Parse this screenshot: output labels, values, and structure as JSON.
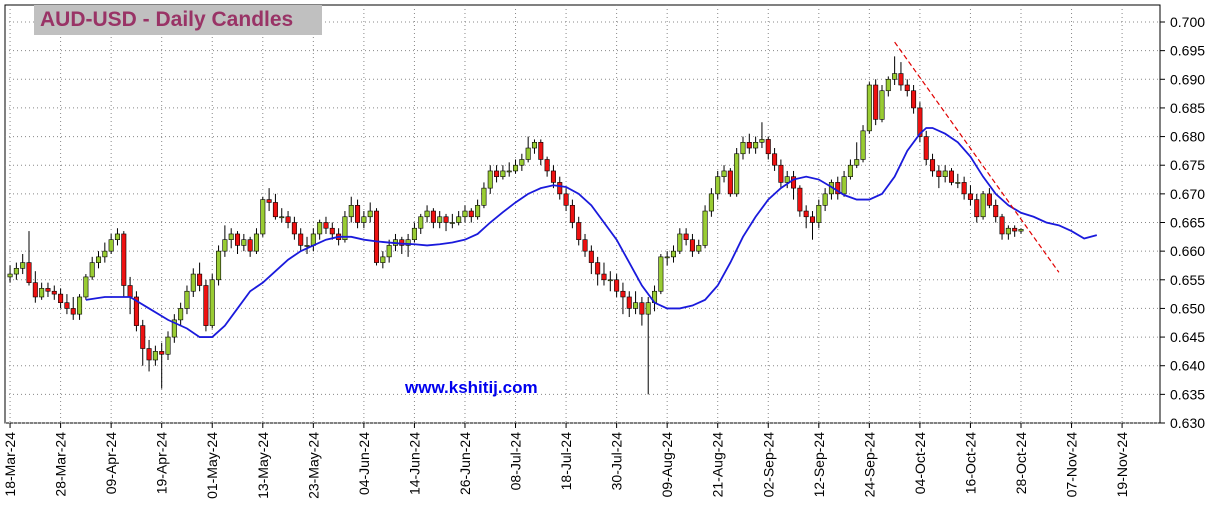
{
  "chart_data": {
    "type": "candlestick",
    "title": "AUD-USD - Daily Candles",
    "watermark": "www.kshitij.com",
    "up_color": "#99cc33",
    "down_color": "#ee1111",
    "grid": true,
    "xlim": [
      -0.8,
      182
    ],
    "xticks": [
      {
        "value": 0,
        "label": "18-Mar-24"
      },
      {
        "value": 8,
        "label": "28-Mar-24"
      },
      {
        "value": 16,
        "label": "09-Apr-24"
      },
      {
        "value": 24,
        "label": "19-Apr-24"
      },
      {
        "value": 32,
        "label": "01-May-24"
      },
      {
        "value": 40,
        "label": "13-May-24"
      },
      {
        "value": 48,
        "label": "23-May-24"
      },
      {
        "value": 56,
        "label": "04-Jun-24"
      },
      {
        "value": 64,
        "label": "14-Jun-24"
      },
      {
        "value": 72,
        "label": "26-Jun-24"
      },
      {
        "value": 80,
        "label": "08-Jul-24"
      },
      {
        "value": 88,
        "label": "18-Jul-24"
      },
      {
        "value": 96,
        "label": "30-Jul-24"
      },
      {
        "value": 104,
        "label": "09-Aug-24"
      },
      {
        "value": 112,
        "label": "21-Aug-24"
      },
      {
        "value": 120,
        "label": "02-Sep-24"
      },
      {
        "value": 128,
        "label": "12-Sep-24"
      },
      {
        "value": 136,
        "label": "24-Sep-24"
      },
      {
        "value": 144,
        "label": "04-Oct-24"
      },
      {
        "value": 152,
        "label": "16-Oct-24"
      },
      {
        "value": 160,
        "label": "28-Oct-24"
      },
      {
        "value": 168,
        "label": "07-Nov-24"
      },
      {
        "value": 176,
        "label": "19-Nov-24"
      }
    ],
    "ylim": [
      0.63,
      0.7
    ],
    "yticks": [
      {
        "value": 0.63,
        "label": "0.630"
      },
      0.635,
      {
        "value": 0.64,
        "label": "0.640"
      },
      0.645,
      {
        "value": 0.65,
        "label": "0.650"
      },
      0.655,
      {
        "value": 0.66,
        "label": "0.660"
      },
      0.665,
      {
        "value": 0.67,
        "label": "0.670"
      },
      0.675,
      {
        "value": 0.68,
        "label": "0.680"
      },
      0.685,
      {
        "value": 0.69,
        "label": "0.690"
      },
      0.695,
      {
        "value": 0.7,
        "label": "0.700"
      }
    ],
    "ohlc": [
      [
        0.6555,
        0.6575,
        0.6545,
        0.656
      ],
      [
        0.656,
        0.658,
        0.655,
        0.657
      ],
      [
        0.657,
        0.6595,
        0.656,
        0.658
      ],
      [
        0.658,
        0.6635,
        0.654,
        0.6545
      ],
      [
        0.6545,
        0.6565,
        0.651,
        0.652
      ],
      [
        0.652,
        0.6545,
        0.6515,
        0.6535
      ],
      [
        0.6535,
        0.6545,
        0.652,
        0.653
      ],
      [
        0.653,
        0.654,
        0.6515,
        0.6525
      ],
      [
        0.6525,
        0.6535,
        0.65,
        0.651
      ],
      [
        0.651,
        0.6525,
        0.649,
        0.65
      ],
      [
        0.65,
        0.652,
        0.648,
        0.649
      ],
      [
        0.649,
        0.6525,
        0.648,
        0.652
      ],
      [
        0.652,
        0.656,
        0.6515,
        0.6555
      ],
      [
        0.6555,
        0.659,
        0.655,
        0.658
      ],
      [
        0.658,
        0.66,
        0.657,
        0.659
      ],
      [
        0.659,
        0.6615,
        0.658,
        0.66
      ],
      [
        0.66,
        0.663,
        0.6595,
        0.662
      ],
      [
        0.662,
        0.664,
        0.661,
        0.663
      ],
      [
        0.663,
        0.6635,
        0.652,
        0.654
      ],
      [
        0.654,
        0.6555,
        0.649,
        0.652
      ],
      [
        0.652,
        0.653,
        0.646,
        0.647
      ],
      [
        0.647,
        0.648,
        0.64,
        0.643
      ],
      [
        0.643,
        0.6445,
        0.639,
        0.641
      ],
      [
        0.641,
        0.6435,
        0.64,
        0.6425
      ],
      [
        0.6425,
        0.644,
        0.636,
        0.642
      ],
      [
        0.642,
        0.646,
        0.641,
        0.645
      ],
      [
        0.645,
        0.649,
        0.644,
        0.648
      ],
      [
        0.648,
        0.651,
        0.647,
        0.65
      ],
      [
        0.65,
        0.654,
        0.649,
        0.653
      ],
      [
        0.653,
        0.657,
        0.652,
        0.656
      ],
      [
        0.656,
        0.658,
        0.653,
        0.654
      ],
      [
        0.654,
        0.655,
        0.646,
        0.647
      ],
      [
        0.647,
        0.656,
        0.6465,
        0.655
      ],
      [
        0.655,
        0.661,
        0.654,
        0.66
      ],
      [
        0.66,
        0.6645,
        0.659,
        0.662
      ],
      [
        0.662,
        0.664,
        0.6605,
        0.663
      ],
      [
        0.663,
        0.6635,
        0.6595,
        0.661
      ],
      [
        0.661,
        0.663,
        0.66,
        0.662
      ],
      [
        0.662,
        0.6625,
        0.659,
        0.66
      ],
      [
        0.66,
        0.664,
        0.6595,
        0.663
      ],
      [
        0.663,
        0.6695,
        0.6625,
        0.669
      ],
      [
        0.669,
        0.671,
        0.667,
        0.6685
      ],
      [
        0.6685,
        0.67,
        0.6655,
        0.666
      ],
      [
        0.666,
        0.6675,
        0.665,
        0.666
      ],
      [
        0.666,
        0.667,
        0.664,
        0.665
      ],
      [
        0.665,
        0.666,
        0.662,
        0.663
      ],
      [
        0.663,
        0.664,
        0.66,
        0.661
      ],
      [
        0.661,
        0.6625,
        0.6595,
        0.661
      ],
      [
        0.661,
        0.664,
        0.66,
        0.663
      ],
      [
        0.663,
        0.6655,
        0.662,
        0.665
      ],
      [
        0.665,
        0.666,
        0.663,
        0.664
      ],
      [
        0.664,
        0.665,
        0.662,
        0.663
      ],
      [
        0.663,
        0.664,
        0.661,
        0.662
      ],
      [
        0.662,
        0.667,
        0.6615,
        0.666
      ],
      [
        0.666,
        0.6695,
        0.665,
        0.668
      ],
      [
        0.668,
        0.669,
        0.664,
        0.665
      ],
      [
        0.665,
        0.667,
        0.664,
        0.666
      ],
      [
        0.666,
        0.6685,
        0.665,
        0.667
      ],
      [
        0.667,
        0.6675,
        0.6575,
        0.658
      ],
      [
        0.658,
        0.66,
        0.657,
        0.659
      ],
      [
        0.659,
        0.662,
        0.658,
        0.661
      ],
      [
        0.661,
        0.663,
        0.66,
        0.662
      ],
      [
        0.662,
        0.6625,
        0.6595,
        0.661
      ],
      [
        0.661,
        0.663,
        0.659,
        0.662
      ],
      [
        0.662,
        0.665,
        0.6615,
        0.664
      ],
      [
        0.664,
        0.6665,
        0.663,
        0.666
      ],
      [
        0.666,
        0.668,
        0.665,
        0.667
      ],
      [
        0.667,
        0.6675,
        0.664,
        0.665
      ],
      [
        0.665,
        0.667,
        0.664,
        0.666
      ],
      [
        0.666,
        0.6665,
        0.6635,
        0.665
      ],
      [
        0.665,
        0.6665,
        0.664,
        0.665
      ],
      [
        0.665,
        0.667,
        0.6645,
        0.666
      ],
      [
        0.666,
        0.668,
        0.665,
        0.667
      ],
      [
        0.667,
        0.6675,
        0.665,
        0.666
      ],
      [
        0.666,
        0.669,
        0.6655,
        0.668
      ],
      [
        0.668,
        0.672,
        0.6675,
        0.671
      ],
      [
        0.671,
        0.675,
        0.67,
        0.674
      ],
      [
        0.674,
        0.675,
        0.672,
        0.673
      ],
      [
        0.673,
        0.675,
        0.6725,
        0.674
      ],
      [
        0.674,
        0.6755,
        0.673,
        0.674
      ],
      [
        0.674,
        0.676,
        0.6735,
        0.675
      ],
      [
        0.675,
        0.677,
        0.674,
        0.676
      ],
      [
        0.676,
        0.68,
        0.6755,
        0.678
      ],
      [
        0.678,
        0.6795,
        0.677,
        0.679
      ],
      [
        0.679,
        0.6795,
        0.675,
        0.676
      ],
      [
        0.676,
        0.6765,
        0.673,
        0.674
      ],
      [
        0.674,
        0.675,
        0.671,
        0.672
      ],
      [
        0.672,
        0.673,
        0.669,
        0.67
      ],
      [
        0.67,
        0.671,
        0.667,
        0.668
      ],
      [
        0.668,
        0.669,
        0.664,
        0.665
      ],
      [
        0.665,
        0.666,
        0.661,
        0.662
      ],
      [
        0.662,
        0.663,
        0.659,
        0.66
      ],
      [
        0.66,
        0.661,
        0.656,
        0.658
      ],
      [
        0.658,
        0.659,
        0.654,
        0.656
      ],
      [
        0.656,
        0.658,
        0.654,
        0.655
      ],
      [
        0.655,
        0.6565,
        0.653,
        0.655
      ],
      [
        0.655,
        0.656,
        0.652,
        0.653
      ],
      [
        0.653,
        0.6545,
        0.649,
        0.652
      ],
      [
        0.652,
        0.653,
        0.6485,
        0.65
      ],
      [
        0.65,
        0.653,
        0.649,
        0.651
      ],
      [
        0.651,
        0.652,
        0.647,
        0.649
      ],
      [
        0.649,
        0.652,
        0.635,
        0.651
      ],
      [
        0.651,
        0.654,
        0.6495,
        0.653
      ],
      [
        0.653,
        0.6595,
        0.6525,
        0.659
      ],
      [
        0.659,
        0.66,
        0.6575,
        0.659
      ],
      [
        0.659,
        0.661,
        0.658,
        0.66
      ],
      [
        0.66,
        0.664,
        0.6595,
        0.663
      ],
      [
        0.663,
        0.664,
        0.661,
        0.662
      ],
      [
        0.662,
        0.663,
        0.659,
        0.66
      ],
      [
        0.66,
        0.662,
        0.6595,
        0.661
      ],
      [
        0.661,
        0.668,
        0.6605,
        0.667
      ],
      [
        0.667,
        0.671,
        0.666,
        0.67
      ],
      [
        0.67,
        0.674,
        0.669,
        0.673
      ],
      [
        0.673,
        0.675,
        0.672,
        0.674
      ],
      [
        0.674,
        0.6745,
        0.6695,
        0.67
      ],
      [
        0.67,
        0.678,
        0.6695,
        0.677
      ],
      [
        0.677,
        0.68,
        0.676,
        0.679
      ],
      [
        0.679,
        0.6805,
        0.677,
        0.678
      ],
      [
        0.678,
        0.68,
        0.677,
        0.679
      ],
      [
        0.679,
        0.6825,
        0.678,
        0.6795
      ],
      [
        0.6795,
        0.68,
        0.676,
        0.677
      ],
      [
        0.677,
        0.678,
        0.674,
        0.675
      ],
      [
        0.675,
        0.676,
        0.671,
        0.672
      ],
      [
        0.672,
        0.674,
        0.671,
        0.673
      ],
      [
        0.673,
        0.674,
        0.669,
        0.671
      ],
      [
        0.671,
        0.6715,
        0.666,
        0.667
      ],
      [
        0.667,
        0.668,
        0.664,
        0.666
      ],
      [
        0.666,
        0.667,
        0.662,
        0.665
      ],
      [
        0.665,
        0.669,
        0.664,
        0.668
      ],
      [
        0.668,
        0.671,
        0.667,
        0.67
      ],
      [
        0.67,
        0.6725,
        0.669,
        0.672
      ],
      [
        0.672,
        0.673,
        0.669,
        0.67
      ],
      [
        0.67,
        0.674,
        0.6695,
        0.673
      ],
      [
        0.673,
        0.676,
        0.6725,
        0.675
      ],
      [
        0.675,
        0.679,
        0.6745,
        0.676
      ],
      [
        0.676,
        0.682,
        0.6755,
        0.681
      ],
      [
        0.681,
        0.6895,
        0.6805,
        0.689
      ],
      [
        0.689,
        0.69,
        0.682,
        0.683
      ],
      [
        0.683,
        0.689,
        0.6825,
        0.688
      ],
      [
        0.688,
        0.6905,
        0.687,
        0.69
      ],
      [
        0.69,
        0.694,
        0.689,
        0.691
      ],
      [
        0.691,
        0.693,
        0.688,
        0.689
      ],
      [
        0.689,
        0.69,
        0.687,
        0.688
      ],
      [
        0.688,
        0.689,
        0.684,
        0.685
      ],
      [
        0.685,
        0.686,
        0.679,
        0.68
      ],
      [
        0.68,
        0.681,
        0.675,
        0.676
      ],
      [
        0.676,
        0.677,
        0.673,
        0.674
      ],
      [
        0.674,
        0.675,
        0.671,
        0.673
      ],
      [
        0.673,
        0.675,
        0.672,
        0.674
      ],
      [
        0.674,
        0.6745,
        0.6715,
        0.672
      ],
      [
        0.672,
        0.6735,
        0.671,
        0.672
      ],
      [
        0.672,
        0.673,
        0.669,
        0.67
      ],
      [
        0.67,
        0.6715,
        0.668,
        0.669
      ],
      [
        0.669,
        0.67,
        0.665,
        0.666
      ],
      [
        0.666,
        0.6705,
        0.6655,
        0.67
      ],
      [
        0.67,
        0.671,
        0.6675,
        0.668
      ],
      [
        0.668,
        0.669,
        0.665,
        0.666
      ],
      [
        0.666,
        0.6665,
        0.662,
        0.663
      ],
      [
        0.663,
        0.6645,
        0.662,
        0.664
      ],
      [
        0.664,
        0.6645,
        0.6625,
        0.6635
      ],
      [
        0.6635,
        0.664,
        0.663,
        0.6638
      ]
    ],
    "ma": {
      "color": "#1a1adc",
      "x": [
        12,
        15,
        19,
        22,
        25,
        28,
        30,
        32,
        34,
        36,
        38,
        40,
        42,
        44,
        46,
        48,
        50,
        52,
        54,
        56,
        58,
        60,
        62,
        64,
        66,
        68,
        70,
        72,
        74,
        76,
        78,
        80,
        82,
        84,
        86,
        88,
        90,
        92,
        94,
        96,
        98,
        100,
        102,
        104,
        106,
        108,
        110,
        112,
        114,
        116,
        118,
        120,
        122,
        124,
        126,
        128,
        130,
        132,
        134,
        136,
        138,
        140,
        142,
        144,
        145,
        146,
        148,
        150,
        152,
        154,
        156,
        158,
        160,
        162,
        164,
        166,
        168,
        170,
        172
      ],
      "values": [
        0.6515,
        0.652,
        0.652,
        0.65,
        0.648,
        0.6465,
        0.645,
        0.645,
        0.647,
        0.65,
        0.653,
        0.6545,
        0.6565,
        0.6585,
        0.66,
        0.661,
        0.662,
        0.6625,
        0.6625,
        0.662,
        0.6617,
        0.6615,
        0.6613,
        0.6612,
        0.661,
        0.6612,
        0.6615,
        0.662,
        0.663,
        0.665,
        0.6668,
        0.6685,
        0.67,
        0.671,
        0.6715,
        0.6712,
        0.67,
        0.668,
        0.665,
        0.662,
        0.658,
        0.654,
        0.651,
        0.65,
        0.65,
        0.6505,
        0.6515,
        0.654,
        0.658,
        0.6625,
        0.666,
        0.669,
        0.671,
        0.6725,
        0.673,
        0.6725,
        0.6712,
        0.6698,
        0.669,
        0.669,
        0.67,
        0.673,
        0.6775,
        0.6805,
        0.6815,
        0.6815,
        0.6805,
        0.679,
        0.6765,
        0.673,
        0.67,
        0.668,
        0.6667,
        0.666,
        0.665,
        0.6645,
        0.6635,
        0.6622,
        0.6628
      ]
    },
    "trend_line": {
      "color": "#e00000",
      "x": [
        140,
        166
      ],
      "values": [
        0.6965,
        0.6563
      ]
    }
  }
}
